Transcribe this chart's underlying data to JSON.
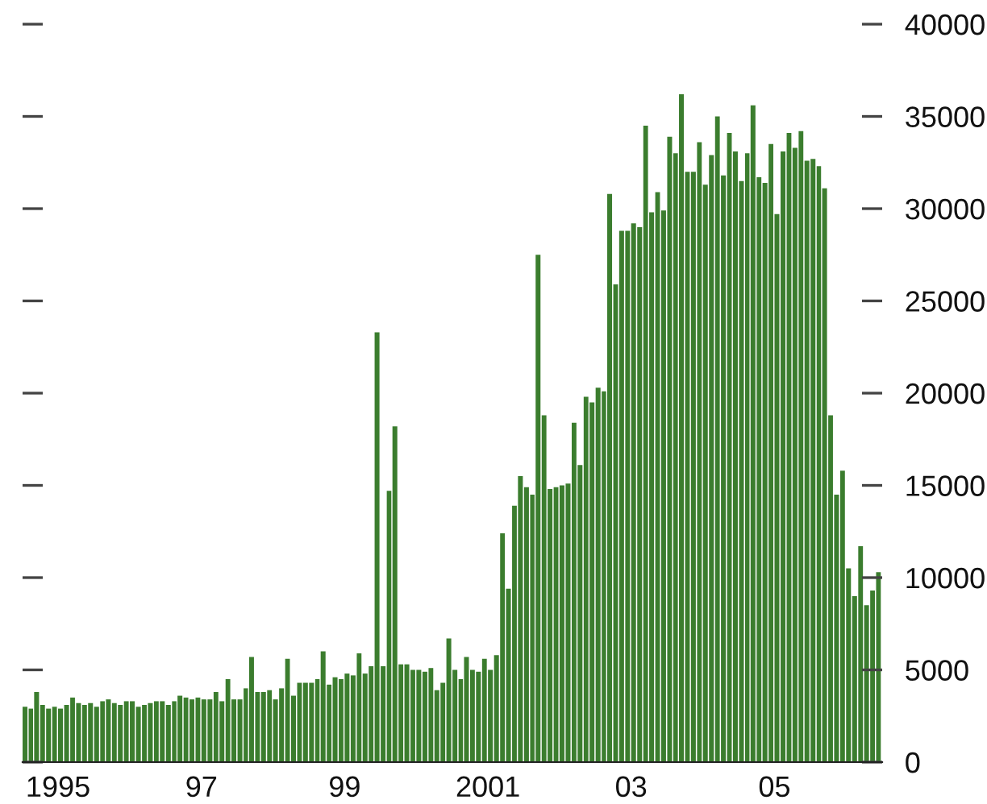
{
  "chart_data": {
    "type": "bar",
    "color": "#3b7d2e",
    "x": [
      "1995-01",
      "1995-02",
      "1995-03",
      "1995-04",
      "1995-05",
      "1995-06",
      "1995-07",
      "1995-08",
      "1995-09",
      "1995-10",
      "1995-11",
      "1995-12",
      "1996-01",
      "1996-02",
      "1996-03",
      "1996-04",
      "1996-05",
      "1996-06",
      "1996-07",
      "1996-08",
      "1996-09",
      "1996-10",
      "1996-11",
      "1996-12",
      "1997-01",
      "1997-02",
      "1997-03",
      "1997-04",
      "1997-05",
      "1997-06",
      "1997-07",
      "1997-08",
      "1997-09",
      "1997-10",
      "1997-11",
      "1997-12",
      "1998-01",
      "1998-02",
      "1998-03",
      "1998-04",
      "1998-05",
      "1998-06",
      "1998-07",
      "1998-08",
      "1998-09",
      "1998-10",
      "1998-11",
      "1998-12",
      "1999-01",
      "1999-02",
      "1999-03",
      "1999-04",
      "1999-05",
      "1999-06",
      "1999-07",
      "1999-08",
      "1999-09",
      "1999-10",
      "1999-11",
      "1999-12",
      "2000-01",
      "2000-02",
      "2000-03",
      "2000-04",
      "2000-05",
      "2000-06",
      "2000-07",
      "2000-08",
      "2000-09",
      "2000-10",
      "2000-11",
      "2000-12",
      "2001-01",
      "2001-02",
      "2001-03",
      "2001-04",
      "2001-05",
      "2001-06",
      "2001-07",
      "2001-08",
      "2001-09",
      "2001-10",
      "2001-11",
      "2001-12",
      "2002-01",
      "2002-02",
      "2002-03",
      "2002-04",
      "2002-05",
      "2002-06",
      "2002-07",
      "2002-08",
      "2002-09",
      "2002-10",
      "2002-11",
      "2002-12",
      "2003-01",
      "2003-02",
      "2003-03",
      "2003-04",
      "2003-05",
      "2003-06",
      "2003-07",
      "2003-08",
      "2003-09",
      "2003-10",
      "2003-11",
      "2003-12",
      "2004-01",
      "2004-02",
      "2004-03",
      "2004-04",
      "2004-05",
      "2004-06",
      "2004-07",
      "2004-08",
      "2004-09",
      "2004-10",
      "2004-11",
      "2004-12",
      "2005-01",
      "2005-02",
      "2005-03",
      "2005-04",
      "2005-05",
      "2005-06",
      "2005-07",
      "2005-08",
      "2005-09",
      "2005-10",
      "2005-11",
      "2005-12",
      "2006-01",
      "2006-02",
      "2006-03",
      "2006-04",
      "2006-05",
      "2006-06",
      "2006-07",
      "2006-08",
      "2006-09",
      "2006-10",
      "2006-11",
      "2006-12"
    ],
    "values": [
      3000,
      2900,
      3800,
      3100,
      2900,
      3000,
      2900,
      3100,
      3500,
      3200,
      3100,
      3200,
      3000,
      3300,
      3400,
      3200,
      3100,
      3300,
      3300,
      3000,
      3100,
      3200,
      3300,
      3300,
      3100,
      3300,
      3600,
      3500,
      3400,
      3500,
      3400,
      3400,
      3800,
      3300,
      4500,
      3400,
      3400,
      4000,
      5700,
      3800,
      3800,
      3900,
      3400,
      4000,
      5600,
      3600,
      4300,
      4300,
      4300,
      4500,
      6000,
      4200,
      4600,
      4500,
      4800,
      4700,
      5900,
      4800,
      5200,
      23300,
      5200,
      14700,
      18200,
      5300,
      5300,
      5000,
      5000,
      4900,
      5100,
      3900,
      4300,
      6700,
      5000,
      4500,
      5700,
      5000,
      4900,
      5600,
      5000,
      5800,
      12400,
      9400,
      13900,
      15500,
      14900,
      14500,
      27500,
      18800,
      14800,
      14900,
      15000,
      15100,
      18400,
      16100,
      19800,
      19500,
      20300,
      20100,
      30800,
      25900,
      28800,
      28800,
      29200,
      29000,
      34500,
      29800,
      30900,
      29900,
      33900,
      33000,
      36200,
      32000,
      32000,
      33600,
      31300,
      32900,
      35000,
      31800,
      34100,
      33100,
      31500,
      33000,
      35600,
      31700,
      31400,
      33500,
      29700,
      33100,
      34100,
      33300,
      34200,
      32600,
      32700,
      32300,
      31100,
      18800,
      14500,
      15800,
      10500,
      9000,
      11700,
      8500,
      9300,
      10300
    ],
    "xlim": [
      "1995-01",
      "2007-01"
    ],
    "xticks": [
      {
        "value": "1995-07",
        "label": "1995"
      },
      {
        "value": "1997-07",
        "label": "97"
      },
      {
        "value": "1999-07",
        "label": "99"
      },
      {
        "value": "2001-07",
        "label": "2001"
      },
      {
        "value": "2003-07",
        "label": "03"
      },
      {
        "value": "2005-07",
        "label": "05"
      }
    ],
    "ylim": [
      0,
      40000
    ],
    "yticks": [
      0,
      5000,
      10000,
      15000,
      20000,
      25000,
      30000,
      35000,
      40000
    ],
    "grid": false
  }
}
